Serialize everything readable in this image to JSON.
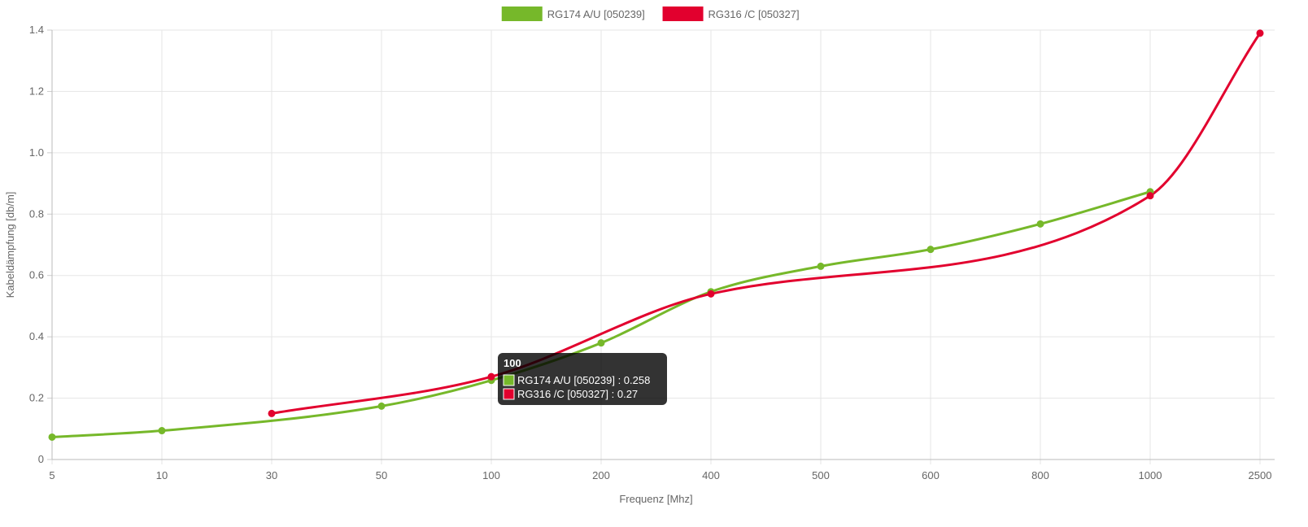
{
  "chart_data": {
    "type": "line",
    "categories": [
      "5",
      "10",
      "30",
      "50",
      "100",
      "200",
      "400",
      "500",
      "600",
      "800",
      "1000",
      "2500"
    ],
    "series": [
      {
        "name": "RG174 A/U [050239]",
        "color": "#76b82a",
        "values": [
          0.073,
          0.094,
          null,
          0.174,
          0.258,
          0.38,
          0.547,
          0.63,
          0.685,
          0.768,
          0.873,
          null
        ]
      },
      {
        "name": "RG316 /C [050327]",
        "color": "#e2002e",
        "values": [
          null,
          null,
          0.15,
          null,
          0.27,
          null,
          0.54,
          null,
          null,
          null,
          0.86,
          1.39
        ]
      }
    ],
    "xlabel": "Frequenz [Mhz]",
    "ylabel": "Kabeldämpfung [db/m]",
    "ylim": [
      0,
      1.4
    ],
    "yticks": [
      "0",
      "0.2",
      "0.4",
      "0.6",
      "0.8",
      "1.0",
      "1.2",
      "1.4"
    ],
    "grid": true,
    "legend": "top-center",
    "tooltip": {
      "title": "100",
      "lines": [
        "RG174 A/U [050239] : 0.258",
        "RG316 /C [050327] : 0.27"
      ]
    }
  }
}
